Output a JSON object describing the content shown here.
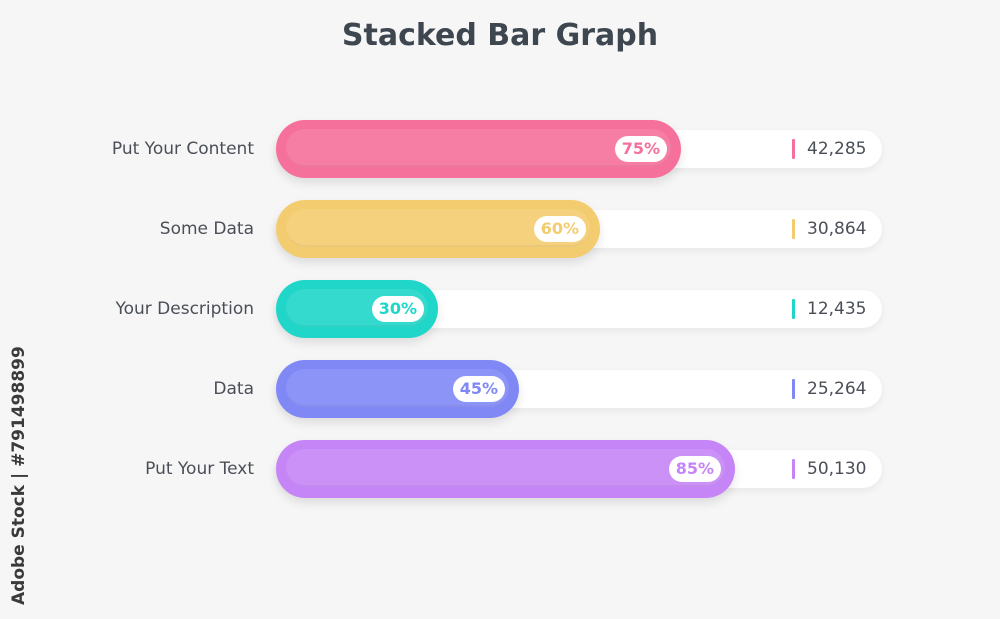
{
  "chart_data": {
    "type": "bar",
    "orientation": "horizontal",
    "title": "Stacked Bar Graph",
    "xlim": [
      0,
      100
    ],
    "grid": false,
    "legend": "none",
    "categories": [
      "Put Your Content",
      "Some Data",
      "Your Description",
      "Data",
      "Put Your Text"
    ],
    "values": [
      75,
      60,
      30,
      45,
      85
    ],
    "value_labels": [
      "75%",
      "60%",
      "30%",
      "45%",
      "85%"
    ],
    "side_values": [
      "42,285",
      "30,864",
      "12,435",
      "25,264",
      "50,130"
    ],
    "colors": [
      "#f5709a",
      "#f4cc70",
      "#1fd6c9",
      "#8088f6",
      "#c685f7"
    ]
  },
  "watermark": "Adobe Stock | #791498899"
}
